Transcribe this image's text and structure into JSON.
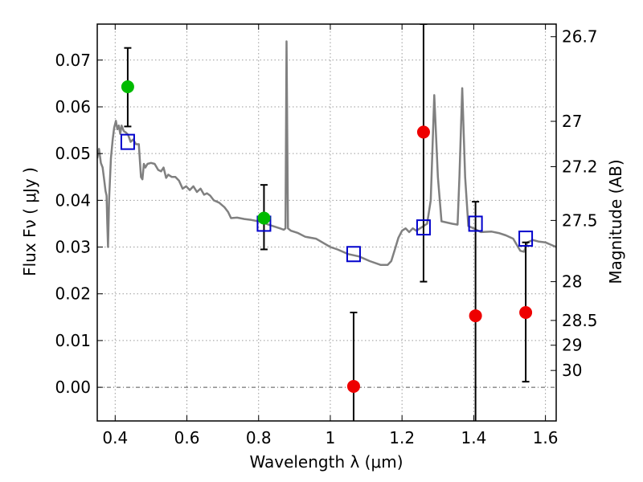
{
  "chart_data": {
    "type": "scatter",
    "title": "",
    "xlabel": "Wavelength  λ (μm)",
    "ylabel": "Flux  Fν  ( μJy )",
    "ylabel_right": "Magnitude (AB)",
    "xlim": [
      0.35,
      1.63
    ],
    "ylim": [
      -0.0072,
      0.0777
    ],
    "grid": true,
    "x_ticks": [
      0.4,
      0.6,
      0.8,
      1.0,
      1.2,
      1.4,
      1.6
    ],
    "x_tick_labels": [
      "0.4",
      "0.6",
      "0.8",
      "1",
      "1.2",
      "1.4",
      "1.6"
    ],
    "y_ticks": [
      0.0,
      0.01,
      0.02,
      0.03,
      0.04,
      0.05,
      0.06,
      0.07
    ],
    "y_tick_labels": [
      "0.00",
      "0.01",
      "0.02",
      "0.03",
      "0.04",
      "0.05",
      "0.06",
      "0.07"
    ],
    "right_ticks": [
      {
        "flux": 0.075,
        "label": "26.7"
      },
      {
        "flux": 0.0569,
        "label": "27"
      },
      {
        "flux": 0.0472,
        "label": "27.2"
      },
      {
        "flux": 0.0357,
        "label": "27.5"
      },
      {
        "flux": 0.0226,
        "label": "28"
      },
      {
        "flux": 0.0143,
        "label": "28.5"
      },
      {
        "flux": 0.009,
        "label": "29"
      },
      {
        "flux": 0.0036,
        "label": "30"
      }
    ],
    "series": [
      {
        "kind": "line",
        "color": "#808080",
        "points": [
          [
            0.35,
            0.049
          ],
          [
            0.355,
            0.051
          ],
          [
            0.36,
            0.048
          ],
          [
            0.365,
            0.047
          ],
          [
            0.37,
            0.044
          ],
          [
            0.373,
            0.042
          ],
          [
            0.376,
            0.041
          ],
          [
            0.378,
            0.035
          ],
          [
            0.38,
            0.03
          ],
          [
            0.383,
            0.04
          ],
          [
            0.388,
            0.049
          ],
          [
            0.393,
            0.053
          ],
          [
            0.397,
            0.0555
          ],
          [
            0.402,
            0.057
          ],
          [
            0.406,
            0.0552
          ],
          [
            0.41,
            0.056
          ],
          [
            0.414,
            0.0542
          ],
          [
            0.418,
            0.056
          ],
          [
            0.424,
            0.0548
          ],
          [
            0.43,
            0.0545
          ],
          [
            0.436,
            0.054
          ],
          [
            0.443,
            0.0525
          ],
          [
            0.45,
            0.053
          ],
          [
            0.458,
            0.052
          ],
          [
            0.466,
            0.052
          ],
          [
            0.472,
            0.045
          ],
          [
            0.476,
            0.0445
          ],
          [
            0.48,
            0.0478
          ],
          [
            0.484,
            0.047
          ],
          [
            0.49,
            0.0478
          ],
          [
            0.5,
            0.048
          ],
          [
            0.51,
            0.0478
          ],
          [
            0.52,
            0.0465
          ],
          [
            0.528,
            0.0462
          ],
          [
            0.535,
            0.047
          ],
          [
            0.542,
            0.0448
          ],
          [
            0.548,
            0.0455
          ],
          [
            0.558,
            0.045
          ],
          [
            0.568,
            0.045
          ],
          [
            0.578,
            0.0442
          ],
          [
            0.588,
            0.0425
          ],
          [
            0.598,
            0.043
          ],
          [
            0.608,
            0.0422
          ],
          [
            0.618,
            0.043
          ],
          [
            0.628,
            0.0418
          ],
          [
            0.638,
            0.0425
          ],
          [
            0.648,
            0.0412
          ],
          [
            0.656,
            0.0415
          ],
          [
            0.665,
            0.041
          ],
          [
            0.675,
            0.04
          ],
          [
            0.69,
            0.0395
          ],
          [
            0.705,
            0.0385
          ],
          [
            0.715,
            0.0375
          ],
          [
            0.723,
            0.0362
          ],
          [
            0.74,
            0.0363
          ],
          [
            0.76,
            0.036
          ],
          [
            0.78,
            0.0358
          ],
          [
            0.8,
            0.0355
          ],
          [
            0.82,
            0.035
          ],
          [
            0.84,
            0.0345
          ],
          [
            0.86,
            0.034
          ],
          [
            0.87,
            0.0337
          ],
          [
            0.875,
            0.034
          ],
          [
            0.878,
            0.074
          ],
          [
            0.882,
            0.034
          ],
          [
            0.89,
            0.0335
          ],
          [
            0.91,
            0.033
          ],
          [
            0.93,
            0.0322
          ],
          [
            0.96,
            0.0318
          ],
          [
            1.0,
            0.03
          ],
          [
            1.02,
            0.0295
          ],
          [
            1.05,
            0.0285
          ],
          [
            1.08,
            0.028
          ],
          [
            1.11,
            0.027
          ],
          [
            1.14,
            0.0262
          ],
          [
            1.16,
            0.0262
          ],
          [
            1.17,
            0.027
          ],
          [
            1.18,
            0.0295
          ],
          [
            1.19,
            0.032
          ],
          [
            1.2,
            0.0335
          ],
          [
            1.21,
            0.034
          ],
          [
            1.22,
            0.0332
          ],
          [
            1.23,
            0.034
          ],
          [
            1.24,
            0.0335
          ],
          [
            1.25,
            0.034
          ],
          [
            1.26,
            0.0345
          ],
          [
            1.27,
            0.035
          ],
          [
            1.28,
            0.04
          ],
          [
            1.29,
            0.0625
          ],
          [
            1.3,
            0.045
          ],
          [
            1.31,
            0.0355
          ],
          [
            1.34,
            0.035
          ],
          [
            1.355,
            0.0348
          ],
          [
            1.36,
            0.045
          ],
          [
            1.368,
            0.064
          ],
          [
            1.376,
            0.045
          ],
          [
            1.385,
            0.0345
          ],
          [
            1.4,
            0.034
          ],
          [
            1.42,
            0.0332
          ],
          [
            1.45,
            0.0333
          ],
          [
            1.47,
            0.033
          ],
          [
            1.49,
            0.0325
          ],
          [
            1.51,
            0.0318
          ],
          [
            1.52,
            0.0305
          ],
          [
            1.53,
            0.0292
          ],
          [
            1.54,
            0.029
          ],
          [
            1.55,
            0.031
          ],
          [
            1.565,
            0.0315
          ],
          [
            1.58,
            0.0312
          ],
          [
            1.6,
            0.031
          ],
          [
            1.615,
            0.0305
          ],
          [
            1.63,
            0.03
          ]
        ]
      },
      {
        "kind": "open-square",
        "color": "#0000cc",
        "points": [
          [
            0.435,
            0.0525
          ],
          [
            0.815,
            0.035
          ],
          [
            1.065,
            0.0285
          ],
          [
            1.26,
            0.0342
          ],
          [
            1.405,
            0.035
          ],
          [
            1.545,
            0.0318
          ]
        ]
      },
      {
        "kind": "filled-circle",
        "color": "#00bb00",
        "points": [
          [
            0.435,
            0.0643
          ],
          [
            0.815,
            0.0362
          ]
        ],
        "errors": [
          [
            0.0558,
            0.0726
          ],
          [
            0.0295,
            0.0433
          ]
        ]
      },
      {
        "kind": "filled-circle",
        "color": "#ee0000",
        "points": [
          [
            1.065,
            0.0002
          ],
          [
            1.26,
            0.0546
          ],
          [
            1.405,
            0.0153
          ],
          [
            1.545,
            0.016
          ]
        ],
        "errors": [
          [
            -0.008,
            0.016
          ],
          [
            0.0226,
            0.0777
          ],
          [
            -0.008,
            0.0397
          ],
          [
            0.0012,
            0.031
          ]
        ]
      }
    ]
  }
}
